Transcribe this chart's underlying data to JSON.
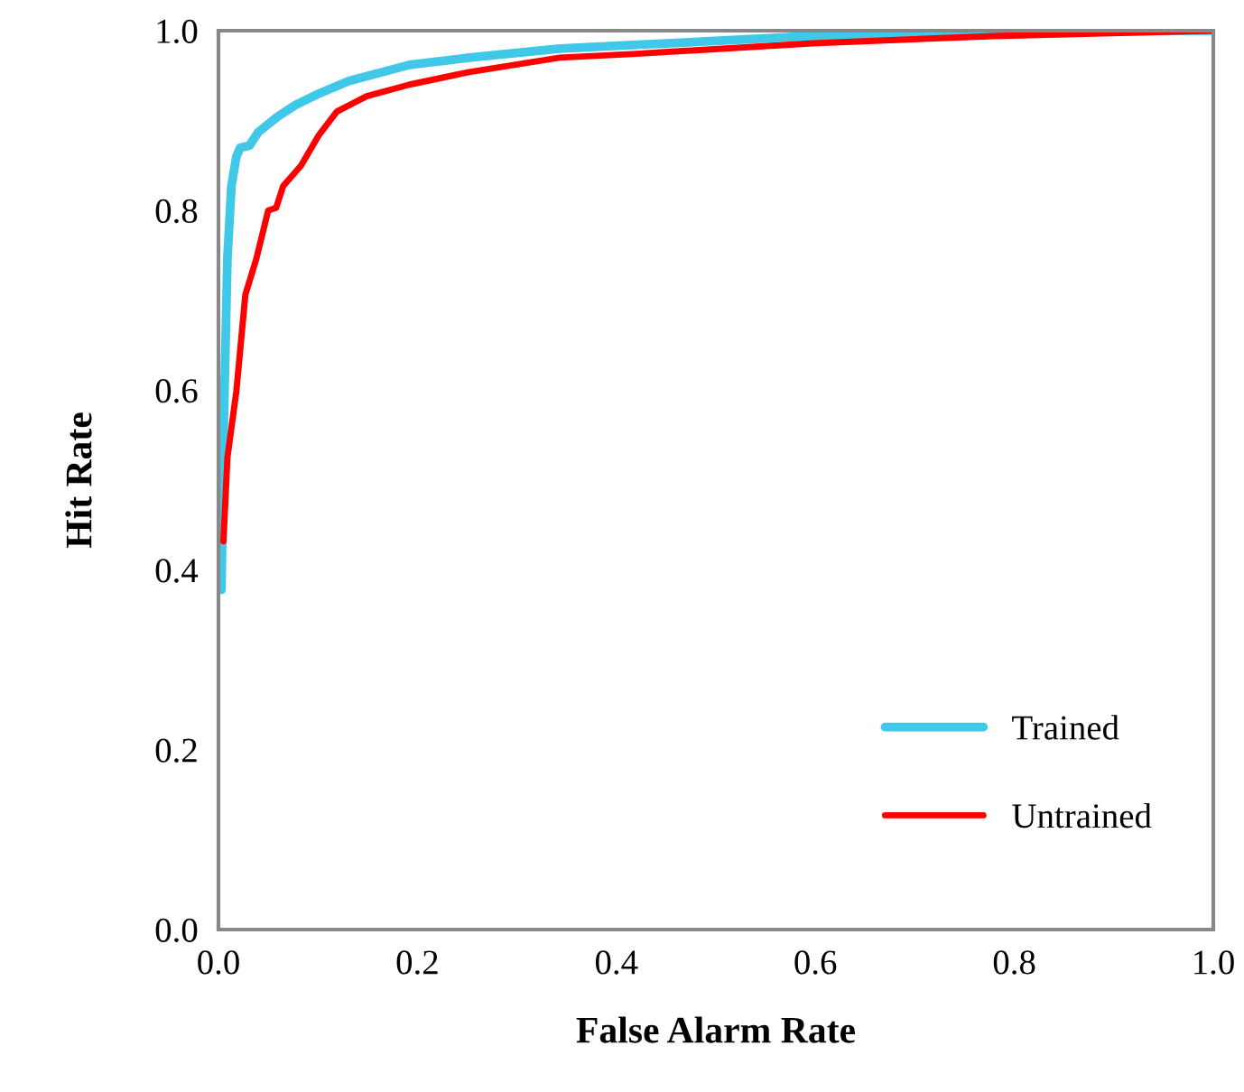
{
  "chart_data": {
    "type": "line",
    "xlabel": "False Alarm Rate",
    "ylabel": "Hit Rate",
    "xlim": [
      0,
      1
    ],
    "ylim": [
      0,
      1
    ],
    "xticks": [
      {
        "value": 0,
        "label": "0.0"
      },
      {
        "value": 0.2,
        "label": "0.2"
      },
      {
        "value": 0.4,
        "label": "0.4"
      },
      {
        "value": 0.6,
        "label": "0.6"
      },
      {
        "value": 0.8,
        "label": "0.8"
      },
      {
        "value": 1,
        "label": "1.0"
      }
    ],
    "yticks": [
      {
        "value": 0,
        "label": "0.0"
      },
      {
        "value": 0.2,
        "label": "0.2"
      },
      {
        "value": 0.4,
        "label": "0.4"
      },
      {
        "value": 0.6,
        "label": "0.6"
      },
      {
        "value": 0.8,
        "label": "0.8"
      },
      {
        "value": 1,
        "label": "1.0"
      }
    ],
    "grid": false,
    "legend": "bottom right",
    "marker": "none",
    "line_style": "solid",
    "series": [
      {
        "name": "Trained",
        "color": "#40c8e8",
        "x": [
          0.003,
          0.005,
          0.009,
          0.013,
          0.018,
          0.022,
          0.031,
          0.04,
          0.059,
          0.077,
          0.101,
          0.131,
          0.192,
          0.252,
          0.343,
          0.416,
          0.597,
          0.779,
          1.0
        ],
        "values": [
          0.378,
          0.546,
          0.747,
          0.827,
          0.86,
          0.87,
          0.872,
          0.887,
          0.904,
          0.917,
          0.93,
          0.944,
          0.962,
          0.97,
          0.98,
          0.984,
          0.994,
          0.999,
          1.0
        ]
      },
      {
        "name": "Untrained",
        "color": "#ff0000",
        "x": [
          0.005,
          0.009,
          0.018,
          0.027,
          0.038,
          0.05,
          0.058,
          0.065,
          0.083,
          0.101,
          0.119,
          0.149,
          0.192,
          0.252,
          0.343,
          0.416,
          0.597,
          0.779,
          1.0
        ],
        "values": [
          0.432,
          0.525,
          0.599,
          0.706,
          0.746,
          0.8,
          0.803,
          0.827,
          0.85,
          0.884,
          0.91,
          0.927,
          0.94,
          0.954,
          0.97,
          0.974,
          0.986,
          0.994,
          1.0
        ]
      }
    ]
  }
}
